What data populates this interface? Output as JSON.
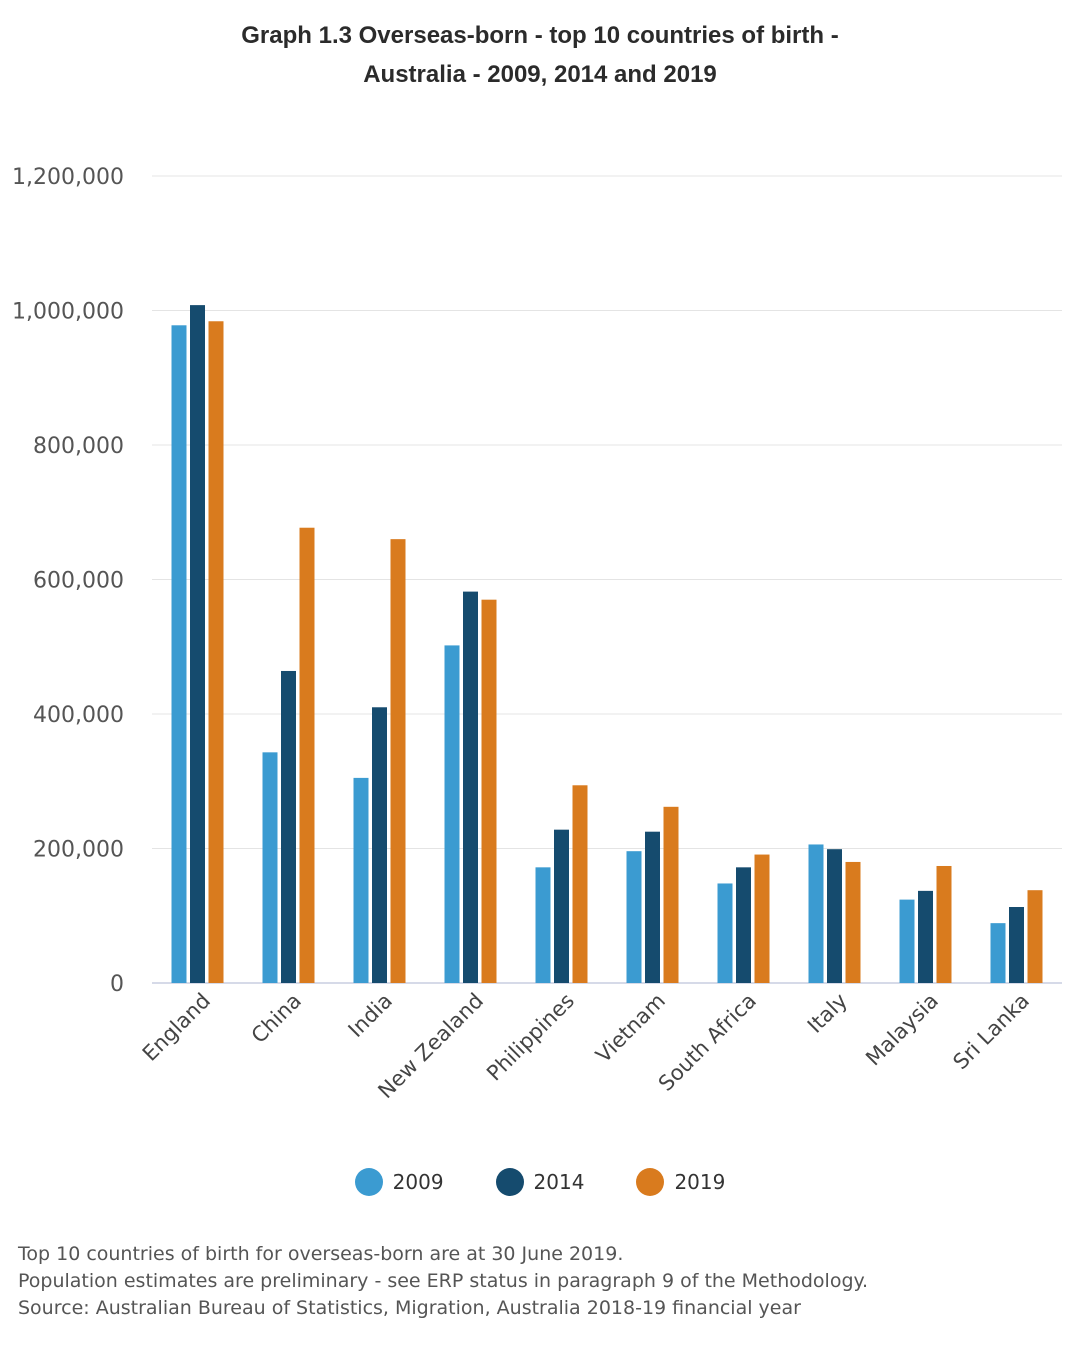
{
  "title": {
    "line1": "Graph 1.3 Overseas-born - top 10 countries of birth -",
    "line2": "Australia - 2009, 2014 and 2019"
  },
  "chart_data": {
    "type": "bar",
    "title": "Graph 1.3 Overseas-born - top 10 countries of birth - Australia - 2009, 2014 and 2019",
    "xlabel": "",
    "ylabel": "",
    "ylim": [
      0,
      1200000
    ],
    "yticks": [
      0,
      200000,
      400000,
      600000,
      800000,
      1000000,
      1200000
    ],
    "ytick_labels": [
      "0",
      "200,000",
      "400,000",
      "600,000",
      "800,000",
      "1,000,000",
      "1,200,000"
    ],
    "grid": true,
    "legend_position": "bottom",
    "categories": [
      "England",
      "China",
      "India",
      "New Zealand",
      "Philippines",
      "Vietnam",
      "South Africa",
      "Italy",
      "Malaysia",
      "Sri Lanka"
    ],
    "series": [
      {
        "name": "2009",
        "color": "#3b9bd1",
        "values": [
          978000,
          343000,
          305000,
          502000,
          172000,
          196000,
          148000,
          206000,
          124000,
          89000
        ]
      },
      {
        "name": "2014",
        "color": "#154b6e",
        "values": [
          1008000,
          464000,
          410000,
          582000,
          228000,
          225000,
          172000,
          199000,
          137000,
          113000
        ]
      },
      {
        "name": "2019",
        "color": "#d97b1e",
        "values": [
          984000,
          677000,
          660000,
          570000,
          294000,
          262000,
          191000,
          180000,
          174000,
          138000
        ]
      }
    ]
  },
  "footnotes": [
    "Top 10 countries of birth for overseas-born are at 30 June 2019.",
    "Population estimates are preliminary - see ERP status in paragraph 9 of the Methodology.",
    "Source: Australian Bureau of Statistics, Migration, Australia 2018-19 financial year"
  ]
}
